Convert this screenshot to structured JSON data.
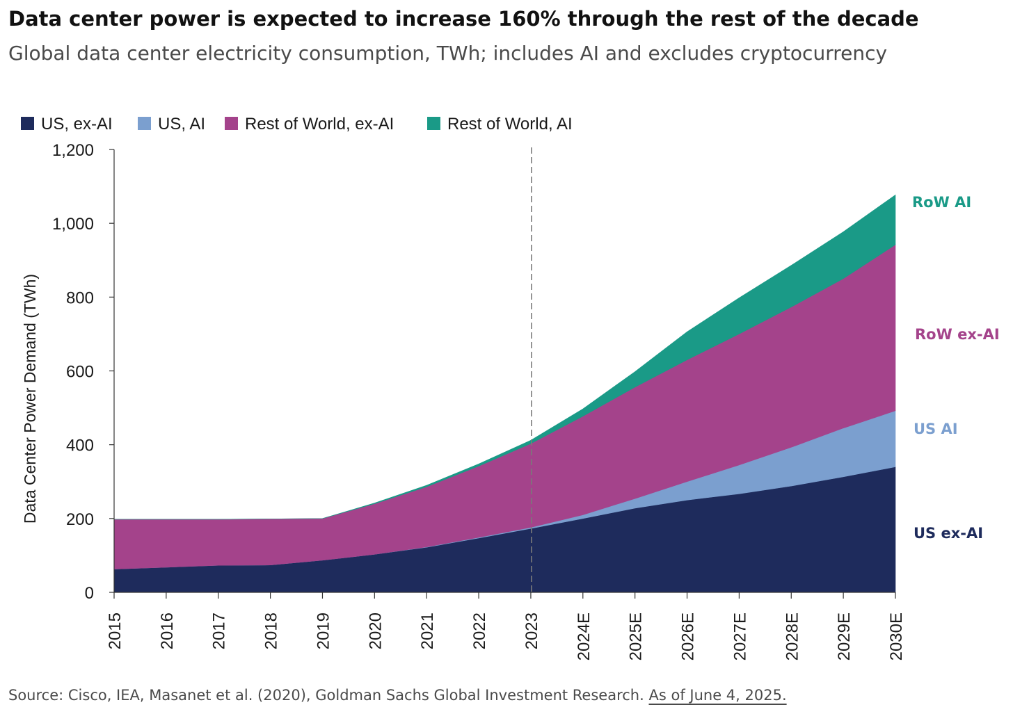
{
  "title": "Data center power is expected to increase 160% through the rest of the decade",
  "subtitle": "Global data center electricity consumption, TWh; includes AI and excludes cryptocurrency",
  "source": {
    "text": "Source: Cisco, IEA, Masanet et al. (2020), Goldman Sachs Global Investment Research.",
    "date": "As of June 4, 2025."
  },
  "colors": {
    "us_ex_ai": "#1e2b5c",
    "us_ai": "#7b9fcf",
    "row_ex_ai": "#a4438b",
    "row_ai": "#1a9a87"
  },
  "chart_data": {
    "type": "area",
    "stacked": true,
    "ylabel": "Data Center Power Demand (TWh)",
    "xlabel": "",
    "ylim": [
      0,
      1200
    ],
    "yticks": [
      "0",
      "200",
      "400",
      "600",
      "800",
      "1,000",
      "1,200"
    ],
    "ytick_values": [
      0,
      200,
      400,
      600,
      800,
      1000,
      1200
    ],
    "categories": [
      "2015",
      "2016",
      "2017",
      "2018",
      "2019",
      "2020",
      "2021",
      "2022",
      "2023",
      "2024E",
      "2025E",
      "2026E",
      "2027E",
      "2028E",
      "2029E",
      "2030E"
    ],
    "divider_after": "2023",
    "legend_position": "top-left",
    "series": [
      {
        "name": "US, ex-AI",
        "end_label": "US ex-AI",
        "color": "#1e2b5c",
        "values": [
          63,
          68,
          73,
          74,
          87,
          103,
          122,
          147,
          173,
          200,
          228,
          250,
          267,
          288,
          313,
          340
        ]
      },
      {
        "name": "US, AI",
        "end_label": "US AI",
        "color": "#7b9fcf",
        "values": [
          0,
          0,
          0,
          0,
          0,
          0,
          1,
          2,
          3,
          10,
          26,
          50,
          78,
          105,
          132,
          152
        ]
      },
      {
        "name": "Rest of World, ex-AI",
        "end_label": "RoW ex-AI",
        "color": "#a4438b",
        "values": [
          135,
          130,
          125,
          125,
          113,
          137,
          163,
          193,
          227,
          267,
          302,
          330,
          355,
          380,
          405,
          450
        ]
      },
      {
        "name": "Rest of World, AI",
        "end_label": "RoW AI",
        "color": "#1a9a87",
        "values": [
          0,
          0,
          0,
          0,
          0,
          2,
          4,
          6,
          9,
          20,
          42,
          76,
          98,
          113,
          127,
          135
        ]
      }
    ]
  }
}
